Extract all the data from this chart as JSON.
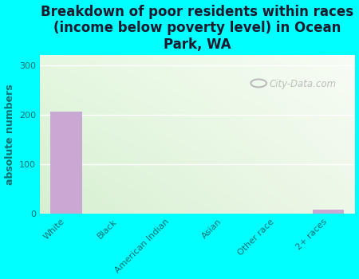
{
  "title": "Breakdown of poor residents within races\n(income below poverty level) in Ocean\nPark, WA",
  "ylabel": "absolute numbers",
  "categories": [
    "White",
    "Black",
    "American Indian",
    "Asian",
    "Other race",
    "2+ races"
  ],
  "values": [
    207,
    0,
    0,
    0,
    0,
    8
  ],
  "bar_color": "#c9a8d4",
  "ylim": [
    0,
    320
  ],
  "yticks": [
    0,
    100,
    200,
    300
  ],
  "background_color": "#00ffff",
  "plot_bg_topleft": "#d4eac8",
  "plot_bg_topright": "#f5f5f0",
  "plot_bg_bottom": "#e8f5e0",
  "watermark": "City-Data.com",
  "tick_color": "#007070",
  "title_color": "#1a1a2e",
  "grid_color": "#ffffff",
  "title_fontsize": 12,
  "ylabel_fontsize": 9,
  "tick_fontsize": 8
}
